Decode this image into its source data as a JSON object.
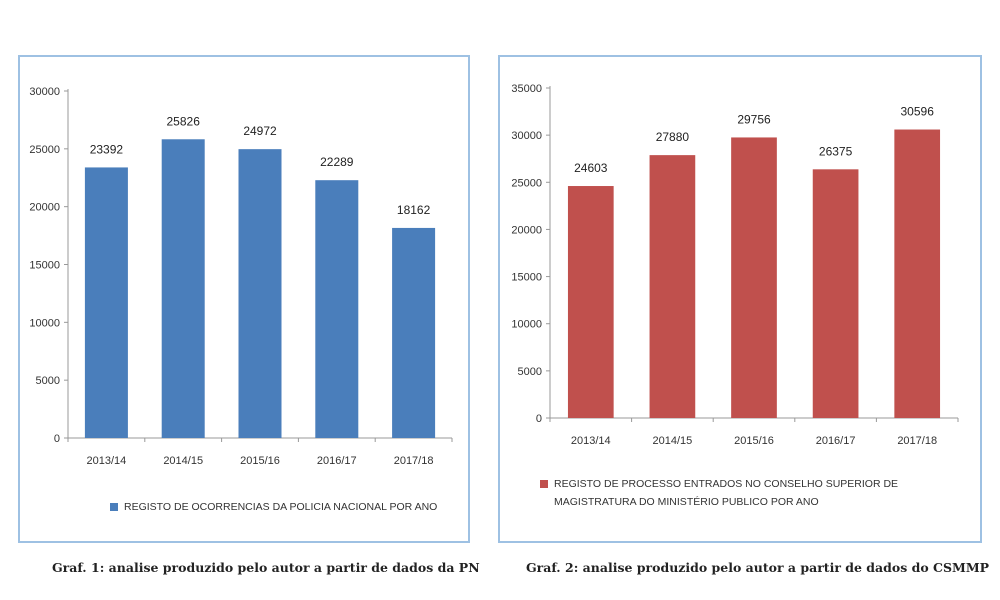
{
  "chart_data": [
    {
      "type": "bar",
      "categories": [
        "2013/14",
        "2014/15",
        "2015/16",
        "2016/17",
        "2017/18"
      ],
      "series": [
        {
          "name": "REGISTO DE OCORRENCIAS  DA POLICIA NACIONAL POR ANO",
          "values": [
            23392,
            25826,
            24972,
            22289,
            18162
          ]
        }
      ],
      "ylim": [
        0,
        30000
      ],
      "yticks": [
        0,
        5000,
        10000,
        15000,
        20000,
        25000,
        30000
      ],
      "grid": false,
      "legend_position": "bottom",
      "color": "#4a7ebb"
    },
    {
      "type": "bar",
      "categories": [
        "2013/14",
        "2014/15",
        "2015/16",
        "2016/17",
        "2017/18"
      ],
      "series": [
        {
          "name": "REGISTO DE PROCESSO  ENTRADOS NO CONSELHO SUPERIOR DE MAGISTRATURA DO MINISTÉRIO PUBLICO POR ANO",
          "values": [
            24603,
            27880,
            29756,
            26375,
            30596
          ]
        }
      ],
      "ylim": [
        0,
        35000
      ],
      "yticks": [
        0,
        5000,
        10000,
        15000,
        20000,
        25000,
        30000,
        35000
      ],
      "grid": false,
      "legend_position": "bottom",
      "color": "#c0504d"
    }
  ],
  "captions": {
    "graf1": "Graf. 1: analise produzido pelo autor a partir de dados da PN",
    "graf2": "Graf. 2: analise produzido pelo autor a partir de dados do CSMMP"
  }
}
